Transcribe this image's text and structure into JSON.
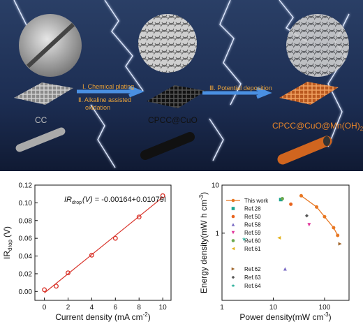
{
  "schematic": {
    "step1": "Ⅰ. Chemical plating",
    "step2a": "Ⅱ. Alkaline assisted",
    "step2b": "oxidation",
    "step3": "Ⅲ. Potential deposition",
    "label1": "CC",
    "label2": "CPCC@CuO",
    "label3": {
      "main": "CPCC@CuO@Mn(OH)",
      "sub": "2"
    }
  },
  "chart_data": [
    {
      "type": "scatter-fit",
      "x": [
        0,
        1,
        2,
        4,
        6,
        8,
        10
      ],
      "values": [
        0.002,
        0.006,
        0.021,
        0.041,
        0.06,
        0.084,
        0.108
      ],
      "color": "#d9342b",
      "xlim": [
        -0.8,
        10.7
      ],
      "ylim": [
        -0.01,
        0.12
      ],
      "xticks": [
        0,
        2,
        4,
        6,
        8,
        10
      ],
      "yticks": [
        {
          "value": 0,
          "label": "0.00"
        },
        {
          "value": 0.02,
          "label": "0.02"
        },
        {
          "value": 0.04,
          "label": "0.04"
        },
        {
          "value": 0.06,
          "label": "0.06"
        },
        {
          "value": 0.08,
          "label": "0.08"
        },
        {
          "value": 0.1,
          "label": "0.10"
        },
        {
          "value": 0.12,
          "label": "0.12"
        }
      ],
      "y_label": {
        "main": "IR",
        "sub": "drop",
        "unit": "(V)"
      },
      "x_label": {
        "main": "Current density (mA cm",
        "sup": "-2",
        "end": ")"
      },
      "annotation": {
        "main": "IR",
        "sub": "drop",
        "var": "(V)",
        "eq": " = ",
        "intercept": -0.00164,
        "plus": "+",
        "slope": 0.01079,
        "x": "I"
      }
    },
    {
      "type": "scatter",
      "log_x": true,
      "log_y": true,
      "xlim": [
        1,
        300
      ],
      "ylim": [
        0.04,
        10
      ],
      "xticks": [
        1,
        10,
        100
      ],
      "yticks": [
        1,
        10
      ],
      "y_label": {
        "main": "Energy density(mW h cm",
        "sup": "-3",
        "end": ")"
      },
      "x_label": {
        "main": "Power density(mW cm",
        "sup": "-3",
        "end": ")"
      },
      "series": [
        {
          "name": "This work",
          "color": "#e87722",
          "marker": "circle",
          "line": true,
          "x": [
            35,
            70,
            100,
            150,
            180
          ],
          "values": [
            6,
            3.5,
            2.2,
            1.3,
            0.9
          ]
        },
        {
          "name": "Ref.28",
          "color": "#1aa38f",
          "marker": "square",
          "x": [
            14
          ],
          "values": [
            5
          ]
        },
        {
          "name": "Ref.50",
          "color": "#e8641e",
          "marker": "circle",
          "x": [
            22
          ],
          "values": [
            4
          ]
        },
        {
          "name": "Ref.58",
          "color": "#7b6cc4",
          "marker": "up",
          "x": [
            17
          ],
          "values": [
            0.18
          ]
        },
        {
          "name": "Ref.59",
          "color": "#e0359a",
          "marker": "down",
          "x": [
            50
          ],
          "values": [
            1.5
          ]
        },
        {
          "name": "Ref.60",
          "color": "#6aa84f",
          "marker": "circle",
          "x": [
            15
          ],
          "values": [
            5.2
          ]
        },
        {
          "name": "Ref.61",
          "color": "#e3b21c",
          "marker": "left",
          "x": [
            13
          ],
          "values": [
            0.8
          ]
        },
        {
          "name": "Ref.62",
          "color": "#a0642a",
          "marker": "right",
          "x": [
            200
          ],
          "values": [
            0.6
          ]
        },
        {
          "name": "Ref.63",
          "color": "#555555",
          "marker": "diamond",
          "x": [
            45
          ],
          "values": [
            2.3
          ]
        },
        {
          "name": "Ref.64",
          "color": "#2ab09a",
          "marker": "star",
          "x": [
            2.7
          ],
          "values": [
            0.75
          ]
        }
      ]
    }
  ]
}
